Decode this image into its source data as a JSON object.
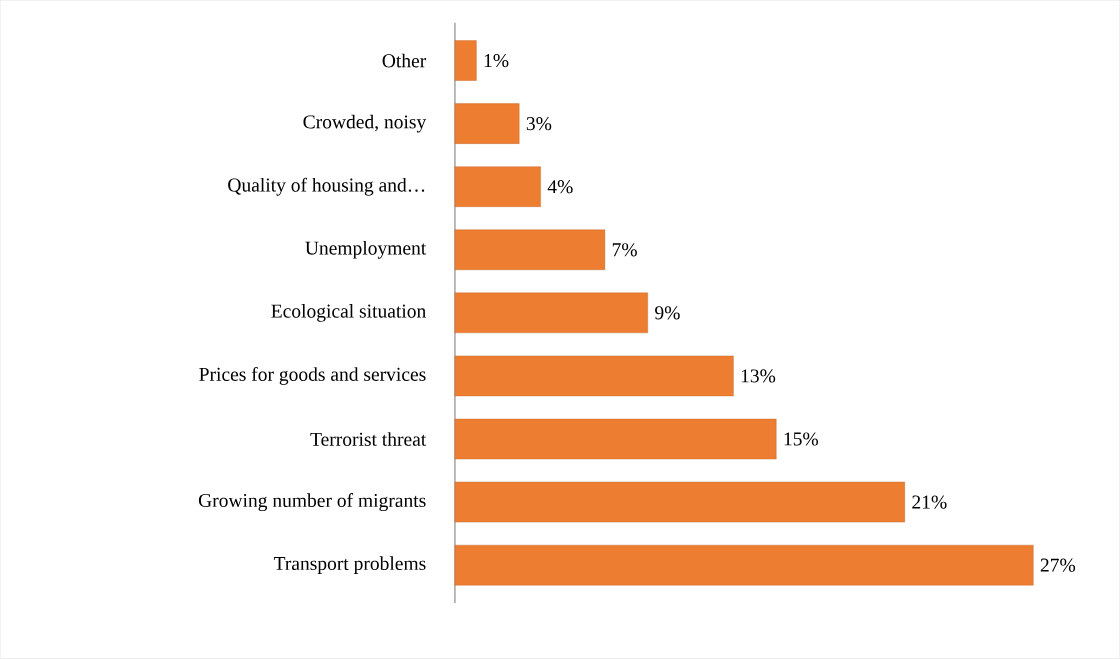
{
  "chart_data": {
    "type": "bar",
    "orientation": "horizontal",
    "categories": [
      "Other",
      "Crowded, noisy",
      "Quality of housing and…",
      "Unemployment",
      "Ecological situation",
      "Prices for goods and services",
      "Terrorist threat",
      "Growing number of migrants",
      "Transport problems"
    ],
    "values": [
      1,
      3,
      4,
      7,
      9,
      13,
      15,
      21,
      27
    ],
    "value_labels": [
      "1%",
      "3%",
      "4%",
      "7%",
      "9%",
      "13%",
      "15%",
      "21%",
      "27%"
    ],
    "color": "#ed7d31"
  }
}
